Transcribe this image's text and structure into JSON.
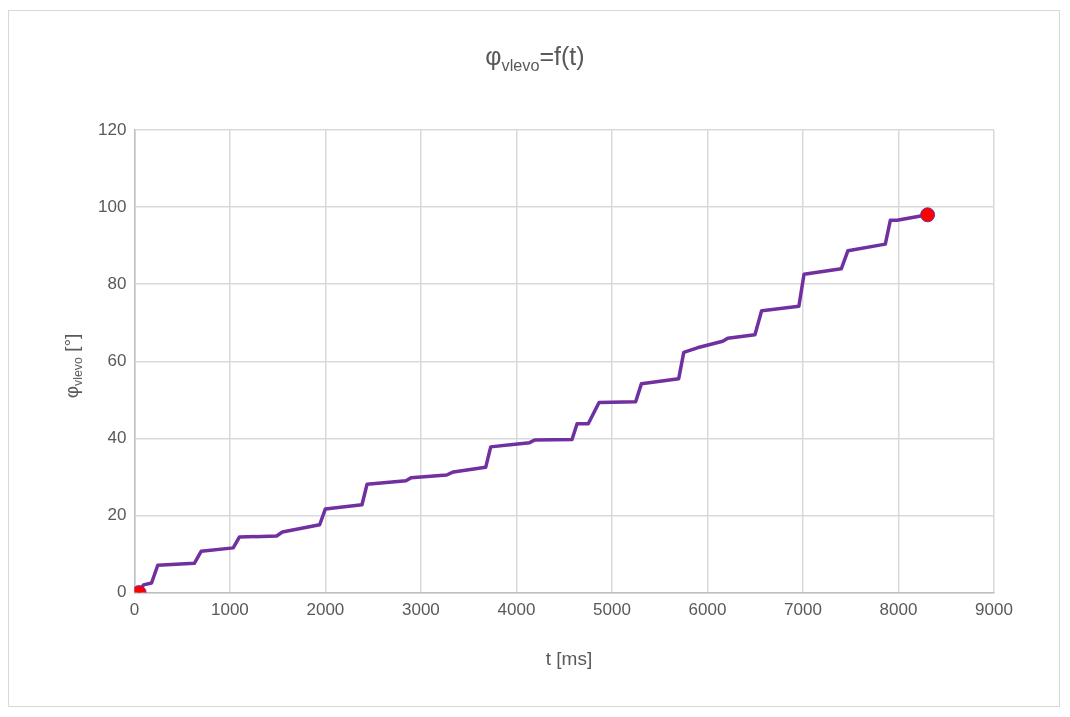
{
  "chart_data": {
    "type": "line",
    "title": "φ$_{vlevo}$=f(t)",
    "xlabel": "t [ms]",
    "ylabel": "φ$_{vlevo}$ [°]",
    "xlim": [
      0,
      9000
    ],
    "xticks": [
      0,
      1000,
      2000,
      3000,
      4000,
      5000,
      6000,
      7000,
      8000,
      9000
    ],
    "ylim": [
      0,
      120
    ],
    "yticks": [
      0,
      20,
      40,
      60,
      80,
      100,
      120
    ],
    "grid": true,
    "legend": false,
    "line_style": "solid",
    "series": [
      {
        "color": "#7030a0",
        "marker": "none",
        "x": [
          50,
          96,
          180,
          245,
          628,
          699,
          1035,
          1099,
          1489,
          1550,
          1940,
          2000,
          2383,
          2436,
          2844,
          2897,
          3270,
          3340,
          3678,
          3731,
          4138,
          4191,
          4582,
          4635,
          4752,
          4865,
          5248,
          5309,
          5699,
          5752,
          5894,
          6160,
          6213,
          6497,
          6567,
          6957,
          7011,
          7401,
          7471,
          7862,
          7915,
          7986,
          8305
        ],
        "values": [
          0,
          2,
          2.5,
          7.1,
          7.6,
          10.7,
          11.6,
          14.4,
          14.7,
          15.7,
          17.6,
          21.7,
          22.8,
          28.1,
          29,
          29.8,
          30.5,
          31.3,
          32.5,
          37.8,
          38.9,
          39.6,
          39.7,
          43.8,
          43.8,
          49.3,
          49.5,
          54.2,
          55.5,
          62.3,
          63.5,
          65.2,
          66,
          66.9,
          73.1,
          74.3,
          82.6,
          84,
          88.7,
          90.4,
          96.6,
          96.6,
          98
        ]
      },
      {
        "type": "scatter",
        "color": "#ff0000",
        "marker": "circle",
        "x": [
          50,
          8305
        ],
        "values": [
          0,
          98
        ]
      }
    ]
  }
}
